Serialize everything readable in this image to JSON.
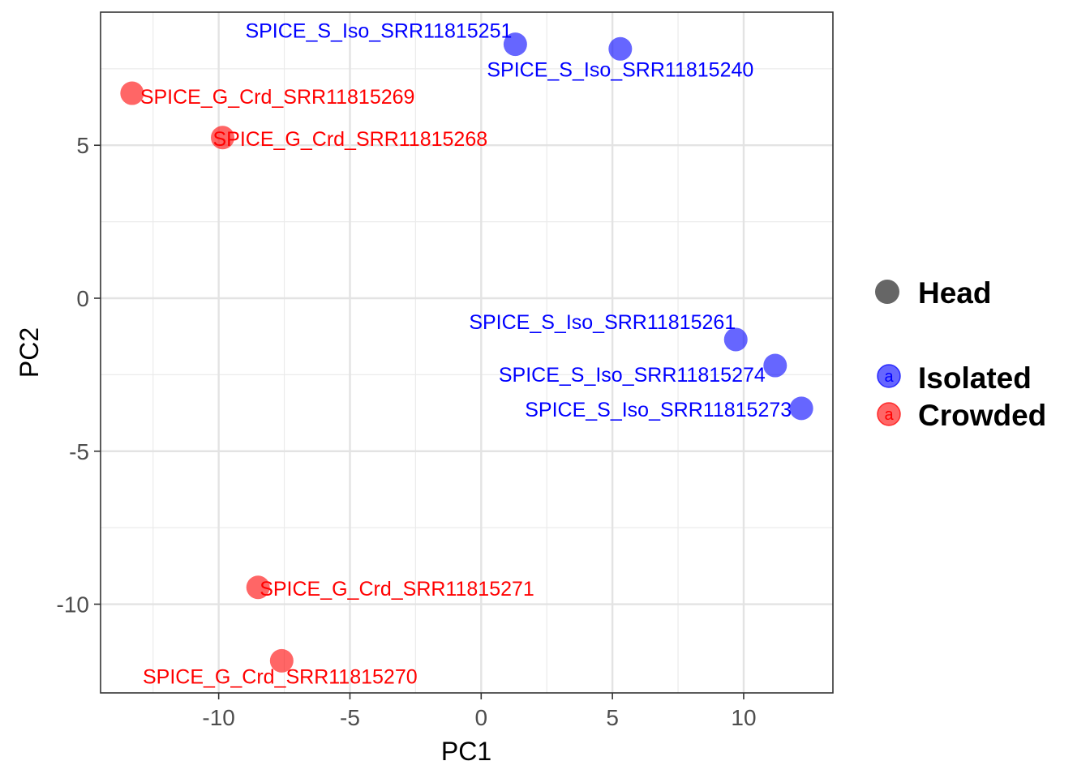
{
  "chart_data": {
    "type": "scatter",
    "title": "",
    "xlabel": "PC1",
    "ylabel": "PC2",
    "xlim": [
      -14.5,
      13.4
    ],
    "ylim": [
      -12.9,
      9.35
    ],
    "x_ticks": [
      -10,
      -5,
      0,
      5,
      10
    ],
    "y_ticks": [
      -10,
      -5,
      0,
      5
    ],
    "x_tick_labels": [
      "-10",
      "-5",
      "0",
      "5",
      "10"
    ],
    "y_tick_labels": [
      "-10",
      "-5",
      "0",
      "5"
    ],
    "grid": true,
    "colors": {
      "Isolated": "#0000ff",
      "Crowded": "#ff0000"
    },
    "series": [
      {
        "name": "Isolated",
        "points": [
          {
            "label": "SPICE_S_Iso_SRR11815251",
            "x": 1.3,
            "y": 8.3
          },
          {
            "label": "SPICE_S_Iso_SRR11815240",
            "x": 5.3,
            "y": 8.15
          },
          {
            "label": "SPICE_S_Iso_SRR11815261",
            "x": 9.7,
            "y": -1.35
          },
          {
            "label": "SPICE_S_Iso_SRR11815274",
            "x": 11.2,
            "y": -2.2
          },
          {
            "label": "SPICE_S_Iso_SRR11815273",
            "x": 12.2,
            "y": -3.6
          }
        ]
      },
      {
        "name": "Crowded",
        "points": [
          {
            "label": "SPICE_G_Crd_SRR11815269",
            "x": -13.3,
            "y": 6.7
          },
          {
            "label": "SPICE_G_Crd_SRR11815268",
            "x": -9.85,
            "y": 5.25
          },
          {
            "label": "SPICE_G_Crd_SRR11815271",
            "x": -8.5,
            "y": -9.45
          },
          {
            "label": "SPICE_G_Crd_SRR11815270",
            "x": -7.6,
            "y": -11.85
          }
        ]
      }
    ],
    "legend": {
      "position": "right",
      "shape_title": "Head",
      "key_glyph": "a",
      "entries": [
        "Isolated",
        "Crowded"
      ]
    }
  }
}
